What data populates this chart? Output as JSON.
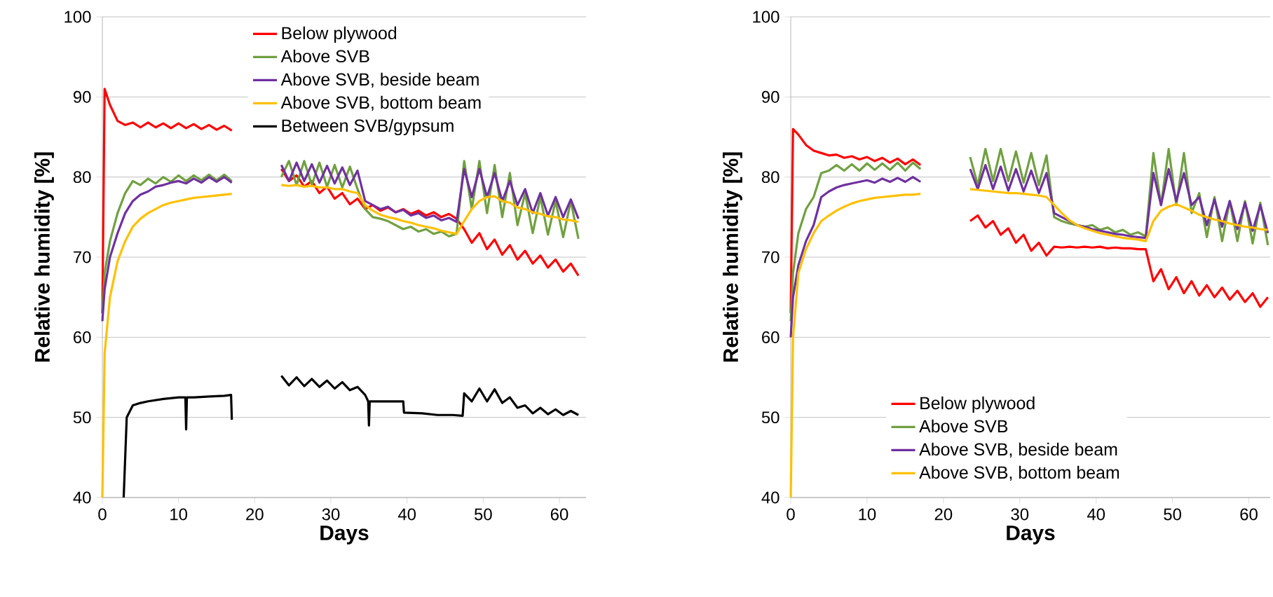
{
  "chart_data": [
    {
      "type": "line",
      "xlabel": "Days",
      "ylabel": "Relative humidity [%]",
      "xlim": [
        0,
        63.5
      ],
      "ylim": [
        40,
        100
      ],
      "xticks": [
        0,
        10,
        20,
        30,
        40,
        50,
        60
      ],
      "yticks": [
        40,
        50,
        60,
        70,
        80,
        90,
        100
      ],
      "grid": "y",
      "legend": "top",
      "x": [
        0,
        0.3,
        1,
        2,
        3,
        4,
        5,
        6,
        7,
        8,
        9,
        10,
        11,
        12,
        13,
        14,
        15,
        16,
        17,
        20,
        23.5,
        24.5,
        25.5,
        26.5,
        27.5,
        28.5,
        29.5,
        30.5,
        31.5,
        32.5,
        33.5,
        34.5,
        35.5,
        36.5,
        37.5,
        38.5,
        39.5,
        40.5,
        41.5,
        42.5,
        43.5,
        44.5,
        45.5,
        46.5,
        47.5,
        48.5,
        49.5,
        50.5,
        51.5,
        52.5,
        53.5,
        54.5,
        55.5,
        56.5,
        57.5,
        58.5,
        59.5,
        60.5,
        61.5,
        62.5
      ],
      "series": [
        {
          "name": "Below plywood",
          "color": "#ff0000",
          "values": [
            63,
            91,
            89,
            87,
            86.5,
            86.8,
            86.2,
            86.8,
            86.2,
            86.7,
            86.1,
            86.7,
            86.1,
            86.6,
            86,
            86.5,
            85.9,
            86.4,
            85.8,
            null,
            81,
            79.5,
            80.2,
            78.8,
            79.5,
            78,
            78.8,
            77.3,
            78,
            76.6,
            77.3,
            76,
            76.5,
            75.8,
            76.2,
            75.6,
            76,
            75.4,
            75.8,
            75.2,
            75.6,
            75,
            75.4,
            74.8,
            73.5,
            71.8,
            73,
            71,
            72.2,
            70.3,
            71.5,
            69.7,
            70.8,
            69.2,
            70.2,
            68.7,
            69.7,
            68.2,
            69.2,
            67.7
          ]
        },
        {
          "name": "Above SVB",
          "color": "#70a040",
          "values": [
            63,
            68,
            72,
            75.5,
            78,
            79.5,
            79,
            79.8,
            79.2,
            80,
            79.4,
            80.2,
            79.5,
            80.2,
            79.6,
            80.3,
            79.6,
            80.3,
            79.5,
            null,
            80,
            82,
            79,
            82,
            79,
            81.8,
            78.8,
            81.5,
            78.7,
            81.3,
            78.5,
            76,
            75,
            74.8,
            74.5,
            74,
            73.5,
            73.8,
            73.2,
            73.5,
            72.9,
            73.2,
            72.6,
            72.9,
            82,
            76,
            82,
            75.5,
            81.5,
            75,
            80.5,
            74,
            78,
            73,
            77.5,
            72.8,
            77,
            72.5,
            77,
            72.3
          ]
        },
        {
          "name": "Above SVB, beside beam",
          "color": "#7030a0",
          "values": [
            62,
            66,
            70,
            73,
            75.5,
            77,
            77.8,
            78.2,
            78.8,
            79,
            79.3,
            79.5,
            79.2,
            79.8,
            79.3,
            80,
            79.4,
            80,
            79.3,
            null,
            81.5,
            79.5,
            81.8,
            79.5,
            81.6,
            79.3,
            81.4,
            79.2,
            81.2,
            79,
            80.8,
            77,
            76.5,
            76,
            76.3,
            75.6,
            75.9,
            75.2,
            75.5,
            74.9,
            75.2,
            74.6,
            74.9,
            74.4,
            81,
            77.5,
            81,
            77.5,
            80.5,
            77,
            79.5,
            76.5,
            78.5,
            75.5,
            78,
            75.2,
            77.5,
            75,
            77.2,
            74.8
          ]
        },
        {
          "name": "Above SVB, bottom beam",
          "color": "#ffc000",
          "values": [
            40,
            58,
            65,
            69.5,
            72,
            73.8,
            74.8,
            75.5,
            76,
            76.5,
            76.8,
            77,
            77.2,
            77.4,
            77.5,
            77.6,
            77.7,
            77.8,
            77.9,
            null,
            79,
            78.9,
            79,
            78.8,
            78.9,
            78.7,
            78.7,
            78.5,
            78.5,
            78.2,
            78,
            76.5,
            75.8,
            75.3,
            75,
            74.8,
            74.5,
            74.3,
            74,
            73.8,
            73.6,
            73.3,
            73.1,
            72.9,
            74.5,
            76,
            77,
            77.5,
            77.6,
            77,
            76.8,
            76.2,
            76,
            75.6,
            75.4,
            75.1,
            75,
            74.7,
            74.6,
            74.4
          ]
        },
        {
          "name": "Between SVB/gypsum",
          "color": "#000000",
          "x": [
            2.8,
            3.2,
            4,
            5,
            6,
            8,
            10,
            10.9,
            11,
            11.1,
            12,
            14,
            16,
            16.9,
            17,
            20,
            23.5,
            24.5,
            25.5,
            26.5,
            27.5,
            28.5,
            29.5,
            30.5,
            31.5,
            32.5,
            33.5,
            34.5,
            34.9,
            35,
            35.1,
            37,
            39.5,
            39.6,
            42,
            44,
            46,
            47.3,
            47.5,
            48.5,
            49.5,
            50.5,
            51.5,
            52.5,
            53.5,
            54.5,
            55.5,
            56.5,
            57.5,
            58.5,
            59.5,
            60.5,
            61.5,
            62.5
          ],
          "values": [
            40,
            50,
            51.5,
            51.8,
            52,
            52.3,
            52.5,
            52.5,
            48.5,
            52.5,
            52.5,
            52.6,
            52.7,
            52.8,
            49.7,
            null,
            55.2,
            54,
            55,
            53.9,
            54.8,
            53.8,
            54.6,
            53.6,
            54.4,
            53.4,
            53.8,
            52.8,
            52,
            49,
            52,
            52,
            52,
            50.6,
            50.5,
            50.3,
            50.3,
            50.2,
            53,
            52,
            53.6,
            52,
            53.5,
            51.8,
            52.5,
            51.2,
            51.5,
            50.5,
            51.2,
            50.4,
            51,
            50.3,
            50.8,
            50.3
          ]
        }
      ]
    },
    {
      "type": "line",
      "xlabel": "Days",
      "ylabel": "Relative humidity [%]",
      "xlim": [
        0,
        62.8
      ],
      "ylim": [
        40,
        100
      ],
      "xticks": [
        0,
        10,
        20,
        30,
        40,
        50,
        60
      ],
      "yticks": [
        40,
        50,
        60,
        70,
        80,
        90,
        100
      ],
      "grid": "y",
      "legend": "bottom",
      "x": [
        0,
        0.3,
        1,
        2,
        3,
        4,
        5,
        6,
        7,
        8,
        9,
        10,
        11,
        12,
        13,
        14,
        15,
        16,
        17,
        20,
        23.5,
        24.5,
        25.5,
        26.5,
        27.5,
        28.5,
        29.5,
        30.5,
        31.5,
        32.5,
        33.5,
        34.5,
        35.5,
        36.5,
        37.5,
        38.5,
        39.5,
        40.5,
        41.5,
        42.5,
        43.5,
        44.5,
        45.5,
        46.5,
        47.5,
        48.5,
        49.5,
        50.5,
        51.5,
        52.5,
        53.5,
        54.5,
        55.5,
        56.5,
        57.5,
        58.5,
        59.5,
        60.5,
        61.5,
        62.5
      ],
      "series": [
        {
          "name": "Below plywood",
          "color": "#ff0000",
          "values": [
            63,
            86,
            85.3,
            84,
            83.3,
            83,
            82.7,
            82.8,
            82.4,
            82.6,
            82.2,
            82.5,
            82,
            82.4,
            81.8,
            82.3,
            81.6,
            82.2,
            81.5,
            null,
            74.5,
            75.2,
            73.7,
            74.5,
            72.8,
            73.6,
            71.8,
            72.8,
            70.8,
            71.8,
            70.2,
            71.3,
            71.2,
            71.3,
            71.2,
            71.3,
            71.2,
            71.3,
            71.1,
            71.2,
            71.1,
            71.1,
            71,
            71,
            67,
            68.5,
            66,
            67.5,
            65.5,
            67,
            65.2,
            66.5,
            65,
            66.2,
            64.7,
            65.8,
            64.4,
            65.5,
            63.8,
            65
          ]
        },
        {
          "name": "Above SVB",
          "color": "#70a040",
          "values": [
            62,
            68,
            73,
            76,
            77.5,
            80.5,
            80.8,
            81.5,
            80.8,
            81.6,
            80.8,
            81.7,
            80.9,
            81.7,
            80.9,
            81.8,
            80.8,
            81.8,
            81,
            null,
            82.5,
            79,
            83.5,
            79.5,
            83.5,
            79.5,
            83.2,
            79.3,
            83,
            79,
            82.7,
            75,
            74.5,
            74.2,
            74,
            73.8,
            74,
            73.4,
            73.7,
            73.1,
            73.4,
            72.8,
            73.1,
            72.6,
            83,
            76.5,
            83.5,
            76.5,
            83,
            75.5,
            78,
            72.5,
            77.5,
            72,
            77,
            72,
            77,
            71.7,
            76.8,
            71.5
          ]
        },
        {
          "name": "Above SVB, beside beam",
          "color": "#7030a0",
          "values": [
            60,
            65,
            69,
            72,
            74,
            77.5,
            78.2,
            78.7,
            79,
            79.2,
            79.4,
            79.6,
            79.3,
            79.8,
            79.4,
            79.9,
            79.4,
            80,
            79.4,
            null,
            81,
            78.5,
            81.5,
            78.5,
            81.3,
            78.3,
            81,
            78.2,
            80.8,
            78,
            80.5,
            75.5,
            75,
            74.5,
            74,
            73.8,
            73.5,
            73.3,
            73.1,
            72.9,
            72.8,
            72.6,
            72.5,
            72.4,
            80.5,
            76.5,
            81,
            77,
            80.5,
            76.5,
            77.5,
            74,
            77.2,
            73.8,
            77,
            73.5,
            76.8,
            73.3,
            76.5,
            73
          ]
        },
        {
          "name": "Above SVB, bottom beam",
          "color": "#ffc000",
          "values": [
            40,
            60,
            68,
            71,
            73,
            74.5,
            75.2,
            75.8,
            76.3,
            76.7,
            77,
            77.2,
            77.4,
            77.5,
            77.6,
            77.7,
            77.8,
            77.8,
            77.9,
            null,
            78.5,
            78.4,
            78.3,
            78.2,
            78.1,
            78,
            78,
            77.9,
            77.8,
            77.7,
            77.5,
            76.5,
            75.5,
            74.6,
            74,
            73.6,
            73.3,
            73,
            72.8,
            72.6,
            72.4,
            72.3,
            72.2,
            72,
            74.5,
            75.8,
            76.3,
            76.6,
            76.2,
            75.8,
            75.3,
            75,
            74.7,
            74.5,
            74.2,
            74,
            73.8,
            73.7,
            73.5,
            73.4
          ]
        }
      ]
    }
  ]
}
